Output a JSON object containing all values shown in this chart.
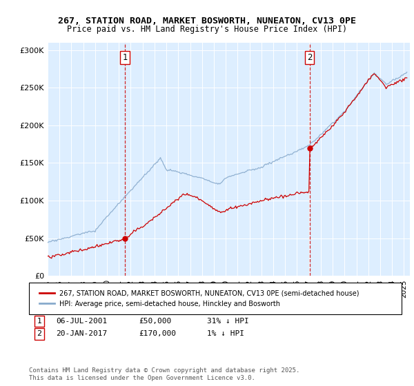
{
  "title_line1": "267, STATION ROAD, MARKET BOSWORTH, NUNEATON, CV13 0PE",
  "title_line2": "Price paid vs. HM Land Registry's House Price Index (HPI)",
  "ylabel_ticks": [
    "£0",
    "£50K",
    "£100K",
    "£150K",
    "£200K",
    "£250K",
    "£300K"
  ],
  "ytick_vals": [
    0,
    50000,
    100000,
    150000,
    200000,
    250000,
    300000
  ],
  "ylim": [
    0,
    310000
  ],
  "xlim_start": 1995.0,
  "xlim_end": 2025.5,
  "marker1_x": 2001.51,
  "marker1_y": 50000,
  "marker2_x": 2017.05,
  "marker2_y": 170000,
  "line_color_red": "#cc0000",
  "line_color_blue": "#88aacc",
  "marker_dot_color": "#cc0000",
  "background_color": "#ddeeff",
  "legend_label_red": "267, STATION ROAD, MARKET BOSWORTH, NUNEATON, CV13 0PE (semi-detached house)",
  "legend_label_blue": "HPI: Average price, semi-detached house, Hinckley and Bosworth",
  "footnote1_date": "06-JUL-2001",
  "footnote1_price": "£50,000",
  "footnote1_hpi": "31% ↓ HPI",
  "footnote2_date": "20-JAN-2017",
  "footnote2_price": "£170,000",
  "footnote2_hpi": "1% ↓ HPI",
  "copyright_text": "Contains HM Land Registry data © Crown copyright and database right 2025.\nThis data is licensed under the Open Government Licence v3.0."
}
